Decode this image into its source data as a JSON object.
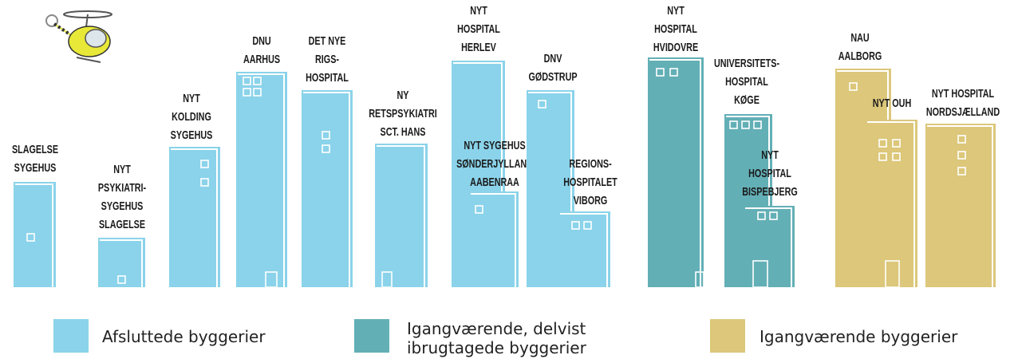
{
  "buildings": [
    {
      "label": [
        "SLAGELSE",
        "SYGEHUS"
      ],
      "category": 0
    },
    {
      "label": [
        "NYT",
        "PSYKIATRI-",
        "SYGEHUS",
        "SLAGELSE"
      ],
      "category": 0
    },
    {
      "label": [
        "NYT",
        "KOLDING",
        "SYGEHUS"
      ],
      "category": 0
    },
    {
      "label": [
        "DNU",
        "AARHUS"
      ],
      "category": 0
    },
    {
      "label": [
        "DET NYE",
        "RIGS-",
        "HOSPITAL"
      ],
      "category": 0
    },
    {
      "label": [
        "NY",
        "RETSPSYKIATRI",
        "SCT. HANS"
      ],
      "category": 0
    },
    {
      "label": [
        "NYT",
        "HOSPITAL",
        "HERLEV"
      ],
      "category": 0
    },
    {
      "label": [
        "NYT SYGEHUS",
        "SØNDERJYLLAND",
        "AABENRAA"
      ],
      "category": 0
    },
    {
      "label": [
        "DNV",
        "GØDSTRUP"
      ],
      "category": 0
    },
    {
      "label": [
        "REGIONS-",
        "HOSPITALET",
        "VIBORG"
      ],
      "category": 0
    },
    {
      "label": [
        "NYT",
        "HOSPITAL",
        "HVIDOVRE"
      ],
      "category": 1
    },
    {
      "label": [
        "UNIVERSITETS-",
        "HOSPITAL",
        "KØGE"
      ],
      "category": 1
    },
    {
      "label": [
        "NYT",
        "HOSPITAL",
        "BISPEBJERG"
      ],
      "category": 1
    },
    {
      "label": [
        "NAU",
        "AALBORG"
      ],
      "category": 2
    },
    {
      "label": [
        "NYT OUH"
      ],
      "category": 2
    },
    {
      "label": [
        "NYT HOSPITAL",
        "NORDSJÆLLAND"
      ],
      "category": 2
    }
  ],
  "legend": [
    {
      "label": [
        "Afsluttede byggerier"
      ],
      "color": "#8ad3ea"
    },
    {
      "label": [
        "Igangværende, delvist",
        "ibrugtagede byggerier"
      ],
      "color": "#63afb6"
    },
    {
      "label": [
        "Igangværende byggerier"
      ],
      "color": "#dcc77a"
    }
  ]
}
